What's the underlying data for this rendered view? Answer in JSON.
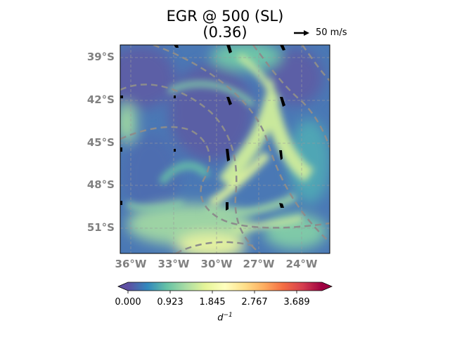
{
  "title": {
    "line1": "EGR @ 500 (SL)",
    "line2": "(0.36)"
  },
  "map": {
    "lat_labels": [
      "39°S",
      "42°S",
      "45°S",
      "48°S",
      "51°S"
    ],
    "lon_labels": [
      "36°W",
      "33°W",
      "30°W",
      "27°W",
      "24°W"
    ],
    "field": "EGR",
    "level": "500",
    "gridlines": true,
    "contour_color": "#8c8c8c",
    "vector_color": "#000000"
  },
  "quiver_key": {
    "label": "50 m/s"
  },
  "colorbar": {
    "ticks": [
      "0.000",
      "0.923",
      "1.845",
      "2.767",
      "3.689"
    ],
    "label_base": "d",
    "label_exp": "−1",
    "colormap": "Spectral_r",
    "colors": [
      "#5e4fa2",
      "#3288bd",
      "#66c2a5",
      "#abdda4",
      "#e6f598",
      "#ffffbf",
      "#fee08b",
      "#fdae61",
      "#f46d43",
      "#d53e4f",
      "#9e0142"
    ]
  }
}
